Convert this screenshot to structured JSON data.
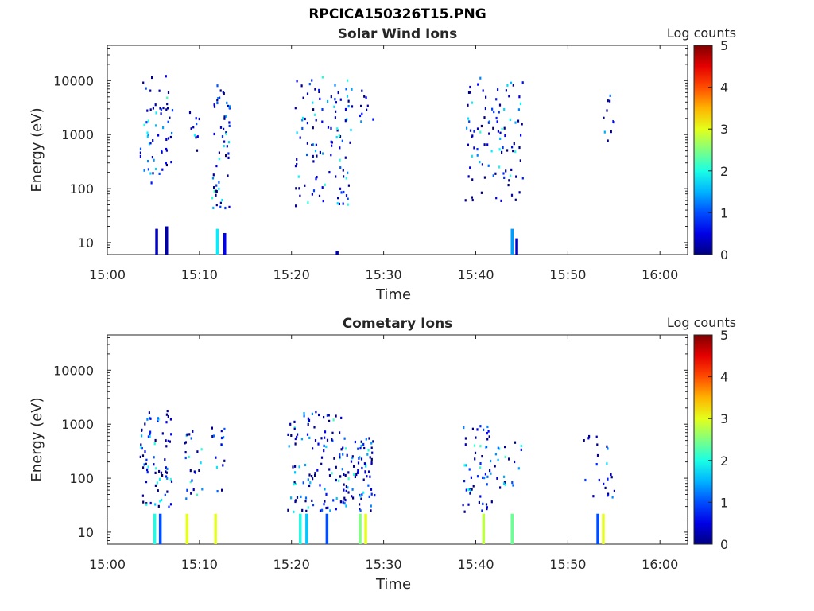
{
  "figure": {
    "title": "RPCICA150326T15.PNG"
  },
  "chart_data": [
    {
      "type": "heatmap",
      "title": "Solar Wind Ions",
      "xlabel": "Time",
      "ylabel": "Energy (eV)",
      "xlim": [
        "15:00",
        "16:03"
      ],
      "ylim": [
        6,
        45000
      ],
      "yscale": "log",
      "xticks": [
        "15:00",
        "15:10",
        "15:20",
        "15:30",
        "15:40",
        "15:50",
        "16:00"
      ],
      "yticks": [
        "10",
        "100",
        "1000",
        "10000"
      ],
      "colorbar": {
        "label": "Log counts",
        "min": 0,
        "max": 5,
        "ticks": [
          "0",
          "1",
          "2",
          "3",
          "4",
          "5"
        ],
        "colormap": "jet"
      },
      "grid": false,
      "bursts": [
        {
          "t_start": 3.5,
          "t_end": 7.0,
          "e_min": 130,
          "e_max": 13000,
          "count": 60
        },
        {
          "t_start": 8.5,
          "t_end": 10.0,
          "e_min": 500,
          "e_max": 5000,
          "count": 10
        },
        {
          "t_start": 11.3,
          "t_end": 13.2,
          "e_min": 40,
          "e_max": 11000,
          "count": 55
        },
        {
          "t_start": 20.3,
          "t_end": 26.5,
          "e_min": 50,
          "e_max": 13000,
          "count": 110
        },
        {
          "t_start": 27.0,
          "t_end": 29.0,
          "e_min": 1500,
          "e_max": 9000,
          "count": 10
        },
        {
          "t_start": 38.8,
          "t_end": 45.2,
          "e_min": 60,
          "e_max": 12000,
          "count": 100
        },
        {
          "t_start": 53.8,
          "t_end": 55.0,
          "e_min": 700,
          "e_max": 6000,
          "count": 10
        }
      ],
      "low_energy_columns": [
        {
          "t": 5.2,
          "e_top": 18,
          "log_counts": 0.4
        },
        {
          "t": 6.3,
          "e_top": 20,
          "log_counts": 0.2
        },
        {
          "t": 11.8,
          "e_top": 18,
          "log_counts": 1.8
        },
        {
          "t": 12.6,
          "e_top": 15,
          "log_counts": 0.6
        },
        {
          "t": 24.8,
          "e_top": 7,
          "log_counts": 0.2
        },
        {
          "t": 43.8,
          "e_top": 18,
          "log_counts": 1.4
        },
        {
          "t": 44.3,
          "e_top": 12,
          "log_counts": 0.3
        }
      ]
    },
    {
      "type": "heatmap",
      "title": "Cometary Ions",
      "xlabel": "Time",
      "ylabel": "Energy (eV)",
      "xlim": [
        "15:00",
        "16:03"
      ],
      "ylim": [
        6,
        45000
      ],
      "yscale": "log",
      "xticks": [
        "15:00",
        "15:10",
        "15:20",
        "15:30",
        "15:40",
        "15:50",
        "16:00"
      ],
      "yticks": [
        "10",
        "100",
        "1000",
        "10000"
      ],
      "colorbar": {
        "label": "Log counts",
        "min": 0,
        "max": 5,
        "ticks": [
          "0",
          "1",
          "2",
          "3",
          "4",
          "5"
        ],
        "colormap": "jet"
      },
      "grid": false,
      "bursts": [
        {
          "t_start": 3.5,
          "t_end": 7.0,
          "e_min": 30,
          "e_max": 2000,
          "count": 75
        },
        {
          "t_start": 8.2,
          "t_end": 10.2,
          "e_min": 40,
          "e_max": 800,
          "count": 25
        },
        {
          "t_start": 10.8,
          "t_end": 13.0,
          "e_min": 60,
          "e_max": 1200,
          "count": 15
        },
        {
          "t_start": 19.5,
          "t_end": 25.5,
          "e_min": 25,
          "e_max": 1900,
          "count": 110
        },
        {
          "t_start": 25.5,
          "t_end": 29.0,
          "e_min": 25,
          "e_max": 600,
          "count": 80
        },
        {
          "t_start": 38.5,
          "t_end": 42.0,
          "e_min": 25,
          "e_max": 1000,
          "count": 55
        },
        {
          "t_start": 42.0,
          "t_end": 45.0,
          "e_min": 70,
          "e_max": 500,
          "count": 20
        },
        {
          "t_start": 51.5,
          "t_end": 55.0,
          "e_min": 45,
          "e_max": 700,
          "count": 22
        }
      ],
      "low_energy_columns": [
        {
          "t": 5.0,
          "e_top": 22,
          "log_counts": 2.0
        },
        {
          "t": 5.6,
          "e_top": 22,
          "log_counts": 1.0
        },
        {
          "t": 8.5,
          "e_top": 22,
          "log_counts": 3.0
        },
        {
          "t": 11.6,
          "e_top": 22,
          "log_counts": 3.0
        },
        {
          "t": 20.8,
          "e_top": 22,
          "log_counts": 2.0
        },
        {
          "t": 21.5,
          "e_top": 22,
          "log_counts": 1.6
        },
        {
          "t": 23.7,
          "e_top": 22,
          "log_counts": 1.0
        },
        {
          "t": 27.3,
          "e_top": 22,
          "log_counts": 2.5
        },
        {
          "t": 27.9,
          "e_top": 22,
          "log_counts": 3.0
        },
        {
          "t": 40.7,
          "e_top": 22,
          "log_counts": 2.8
        },
        {
          "t": 43.8,
          "e_top": 22,
          "log_counts": 2.4
        },
        {
          "t": 53.1,
          "e_top": 22,
          "log_counts": 1.0
        },
        {
          "t": 53.7,
          "e_top": 22,
          "log_counts": 3.0
        }
      ]
    }
  ]
}
